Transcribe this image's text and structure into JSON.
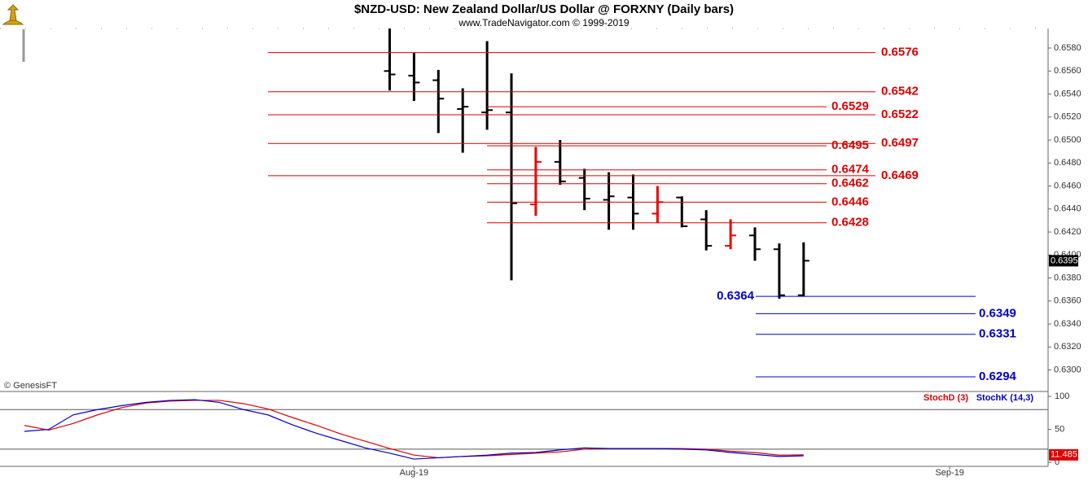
{
  "chart_data": [
    {
      "type": "ohlc",
      "title": "$NZD-USD:  New Zealand Dollar/US Dollar @ FORXNY  (Daily bars)",
      "subtitle": "www.TradeNavigator.com © 1999-2019",
      "source": "© GenesisFT",
      "ylim": [
        0.6282,
        0.6597
      ],
      "yticks": [
        {
          "value": 0.63,
          "label": "0.6300"
        },
        {
          "value": 0.632,
          "label": "0.6320"
        },
        {
          "value": 0.634,
          "label": "0.6340"
        },
        {
          "value": 0.636,
          "label": "0.6360"
        },
        {
          "value": 0.638,
          "label": "0.6380"
        },
        {
          "value": 0.64,
          "label": "0.6400"
        },
        {
          "value": 0.642,
          "label": "0.6420"
        },
        {
          "value": 0.644,
          "label": "0.6440"
        },
        {
          "value": 0.646,
          "label": "0.6460"
        },
        {
          "value": 0.648,
          "label": "0.6480"
        },
        {
          "value": 0.65,
          "label": "0.6500"
        },
        {
          "value": 0.652,
          "label": "0.6520"
        },
        {
          "value": 0.654,
          "label": "0.6540"
        },
        {
          "value": 0.656,
          "label": "0.6560"
        },
        {
          "value": 0.658,
          "label": "0.6580"
        }
      ],
      "open": [
        null,
        null,
        null,
        null,
        null,
        null,
        null,
        null,
        null,
        null,
        null,
        null,
        null,
        null,
        null,
        0.656,
        0.6556,
        0.6552,
        0.6527,
        0.6524,
        0.6524,
        0.6444,
        0.6481,
        0.6467,
        0.6448,
        0.645,
        0.6436,
        0.645,
        0.6431,
        0.6408,
        0.6417,
        0.6405,
        0.6365,
        null,
        null,
        null,
        null,
        null,
        null
      ],
      "high": [
        null,
        null,
        null,
        null,
        null,
        null,
        null,
        null,
        null,
        null,
        null,
        null,
        null,
        null,
        null,
        0.6597,
        0.6576,
        0.6561,
        0.6545,
        0.6586,
        0.6558,
        0.6494,
        0.65,
        0.6475,
        0.6472,
        0.647,
        0.646,
        0.6451,
        0.6439,
        0.6431,
        0.6424,
        0.641,
        0.6411,
        null,
        null,
        null,
        null,
        null,
        null
      ],
      "low": [
        null,
        null,
        null,
        null,
        null,
        null,
        null,
        null,
        null,
        null,
        null,
        null,
        null,
        null,
        null,
        0.6543,
        0.6534,
        0.6506,
        0.6489,
        0.6509,
        0.6378,
        0.6434,
        0.6461,
        0.6439,
        0.6422,
        0.6422,
        0.6428,
        0.6424,
        0.6404,
        0.6405,
        0.6395,
        0.6362,
        0.6364,
        null,
        null,
        null,
        null,
        null,
        null
      ],
      "close": [
        null,
        null,
        null,
        null,
        null,
        null,
        null,
        null,
        null,
        null,
        null,
        null,
        null,
        null,
        null,
        0.6557,
        0.655,
        0.6536,
        0.6529,
        0.6526,
        0.6445,
        0.6481,
        0.6464,
        0.6449,
        0.6451,
        0.6436,
        0.6446,
        0.6425,
        0.6408,
        0.6417,
        0.6405,
        0.6365,
        0.6395,
        null,
        null,
        null,
        null,
        null,
        null
      ],
      "bar_colors": [
        null,
        null,
        null,
        null,
        null,
        null,
        null,
        null,
        null,
        null,
        null,
        null,
        null,
        null,
        null,
        "#000000",
        "#000000",
        "#000000",
        "#000000",
        "#000000",
        "#000000",
        "#ee0000",
        "#000000",
        "#000000",
        "#000000",
        "#000000",
        "#ee0000",
        "#000000",
        "#000000",
        "#ee0000",
        "#000000",
        "#000000",
        "#000000",
        null,
        null,
        null,
        null,
        null,
        null
      ],
      "levels": [
        {
          "values": [
            0.6576,
            0.6542,
            0.6522,
            0.6497,
            0.6469
          ],
          "color": "#dd0000"
        },
        {
          "values": [
            0.6529,
            0.6495,
            0.6474,
            0.6462,
            0.6446,
            0.6428
          ],
          "color": "#dd0000"
        },
        {
          "values": [
            0.6364,
            0.6349,
            0.6331,
            0.6294
          ],
          "color": "#0000cc"
        }
      ]
    },
    {
      "type": "line",
      "categories": [
        null,
        null,
        null,
        null,
        null,
        null,
        null,
        null,
        null,
        null,
        null,
        null,
        null,
        null,
        null,
        null,
        "Aug-19",
        null,
        null,
        null,
        null,
        null,
        null,
        null,
        null,
        null,
        null,
        null,
        null,
        null,
        null,
        null,
        null,
        null,
        null,
        null,
        null,
        null,
        "Sep-19"
      ],
      "ylim": [
        -6,
        105
      ],
      "yticks": [
        0,
        50,
        100
      ],
      "ref_lines": [
        20,
        80
      ],
      "series": [
        {
          "name": "StochD (3)",
          "color": "#dd0000",
          "values": [
            56,
            49,
            59,
            72,
            83,
            90,
            93,
            94,
            94,
            89,
            81,
            68,
            56,
            43,
            32,
            21,
            11,
            7,
            9,
            10,
            12,
            14,
            16,
            20,
            21,
            21,
            21,
            21,
            20,
            17,
            15,
            11,
            11.485,
            null,
            null,
            null,
            null,
            null,
            null
          ]
        },
        {
          "name": "StochK (14,3)",
          "color": "#0000cc",
          "values": [
            47,
            50,
            72,
            80,
            86,
            91,
            94,
            95,
            91,
            80,
            72,
            57,
            44,
            33,
            22,
            14,
            5,
            7,
            9,
            11,
            14,
            15,
            19,
            22,
            21,
            21,
            21,
            20,
            19,
            15,
            12,
            9,
            10,
            null,
            null,
            null,
            null,
            null,
            null
          ]
        }
      ]
    }
  ]
}
